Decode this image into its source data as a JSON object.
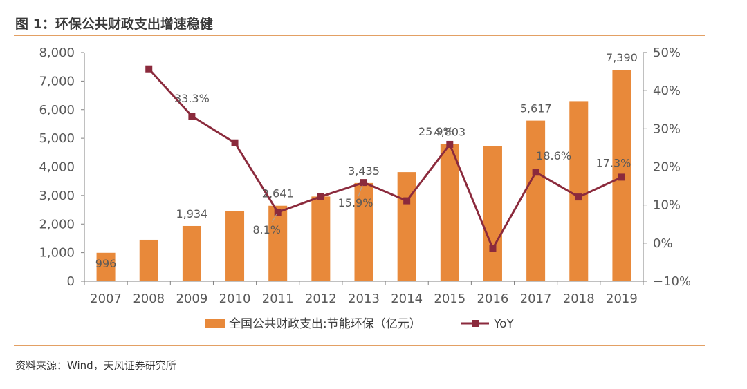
{
  "title": "图 1：环保公共财政支出增速稳健",
  "source": "资料来源：Wind，天风证券研究所",
  "colors": {
    "bar": "#E8893A",
    "line": "#8B2A3C",
    "axis": "#808080",
    "rule": "#E3A064"
  },
  "chart_data": {
    "type": "bar+line",
    "categories": [
      "2007",
      "2008",
      "2009",
      "2010",
      "2011",
      "2012",
      "2013",
      "2014",
      "2015",
      "2016",
      "2017",
      "2018",
      "2019"
    ],
    "series": [
      {
        "name": "全国公共财政支出:节能环保（亿元）",
        "type": "bar",
        "axis": "left",
        "values": [
          996,
          1451,
          1934,
          2442,
          2641,
          2963,
          3435,
          3816,
          4803,
          4734,
          5617,
          6298,
          7390
        ]
      },
      {
        "name": "YoY",
        "type": "line",
        "axis": "right",
        "values": [
          null,
          45.7,
          33.3,
          26.3,
          8.1,
          12.2,
          15.9,
          11.1,
          25.9,
          -1.4,
          18.6,
          12.1,
          17.3
        ]
      }
    ],
    "bar_labels": {
      "0": "996",
      "2": "1,934",
      "4": "2,641",
      "6": "3,435",
      "8": "4,803",
      "10": "5,617",
      "12": "7,390"
    },
    "line_labels": {
      "2": "33.3%",
      "4": "8.1%",
      "6": "15.9%",
      "8": "25.9%",
      "10": "18.6%",
      "12": "17.3%"
    },
    "y_left": {
      "min": 0,
      "max": 8000,
      "ticks": [
        "0",
        "1,000",
        "2,000",
        "3,000",
        "4,000",
        "5,000",
        "6,000",
        "7,000",
        "8,000"
      ],
      "tick_values": [
        0,
        1000,
        2000,
        3000,
        4000,
        5000,
        6000,
        7000,
        8000
      ]
    },
    "y_right": {
      "min": -10,
      "max": 50,
      "ticks": [
        "−10%",
        "0%",
        "10%",
        "20%",
        "30%",
        "40%",
        "50%"
      ],
      "tick_values": [
        -10,
        0,
        10,
        20,
        30,
        40,
        50
      ]
    },
    "legend": [
      "全国公共财政支出:节能环保（亿元）",
      "YoY"
    ]
  }
}
